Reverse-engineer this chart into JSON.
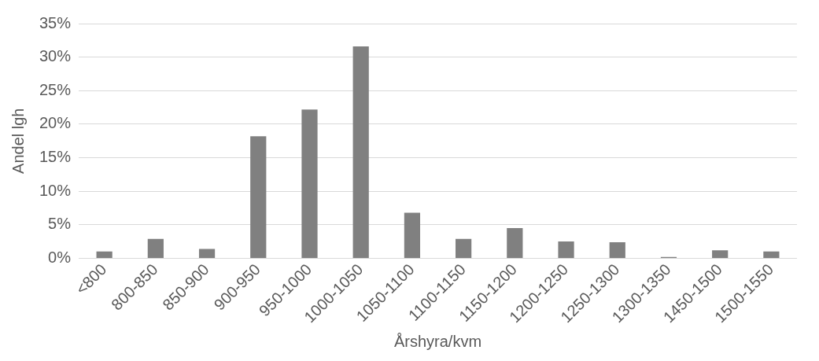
{
  "chart_data": {
    "type": "bar",
    "xlabel": "Årshyra/kvm",
    "ylabel": "Andel lgh",
    "categories": [
      "<800",
      "800-850",
      "850-900",
      "900-950",
      "950-1000",
      "1000-1050",
      "1050-1100",
      "1100-1150",
      "1150-1200",
      "1200-1250",
      "1250-1300",
      "1300-1350",
      "1450-1500",
      "1500-1550"
    ],
    "values": [
      1.0,
      2.9,
      1.4,
      18.2,
      22.2,
      31.6,
      6.8,
      2.9,
      4.5,
      2.5,
      2.4,
      0.2,
      1.2,
      1.0
    ],
    "color": "#808080",
    "ylim": [
      0,
      35
    ],
    "yticks": [
      {
        "value": 0,
        "label": "0%"
      },
      {
        "value": 5,
        "label": "5%"
      },
      {
        "value": 10,
        "label": "10%"
      },
      {
        "value": 15,
        "label": "15%"
      },
      {
        "value": 20,
        "label": "20%"
      },
      {
        "value": 25,
        "label": "25%"
      },
      {
        "value": 30,
        "label": "30%"
      },
      {
        "value": 35,
        "label": "35%"
      }
    ],
    "grid": "y",
    "legend": false
  }
}
